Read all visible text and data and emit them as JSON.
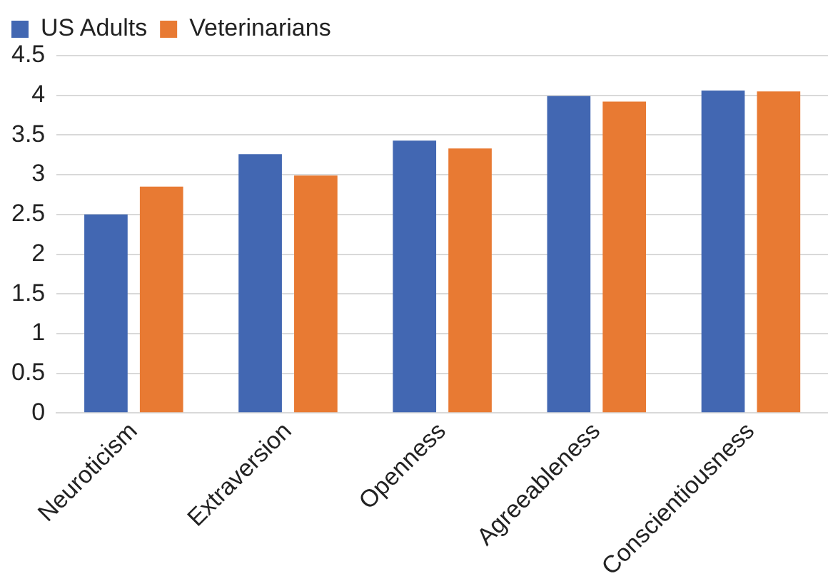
{
  "chart_data": {
    "type": "bar",
    "categories": [
      "Neuroticism",
      "Extraversion",
      "Openness",
      "Agreeableness",
      "Conscientiousness"
    ],
    "series": [
      {
        "name": "US Adults",
        "color": "#4267b2",
        "values": [
          2.5,
          3.26,
          3.43,
          3.99,
          4.06
        ]
      },
      {
        "name": "Veterinarians",
        "color": "#e87a33",
        "values": [
          2.85,
          2.99,
          3.33,
          3.92,
          4.05
        ]
      }
    ],
    "ylim": [
      0,
      4.5
    ],
    "yticks": [
      0,
      0.5,
      1,
      1.5,
      2,
      2.5,
      3,
      3.5,
      4,
      4.5
    ],
    "grid": "y",
    "legend": "top left"
  }
}
